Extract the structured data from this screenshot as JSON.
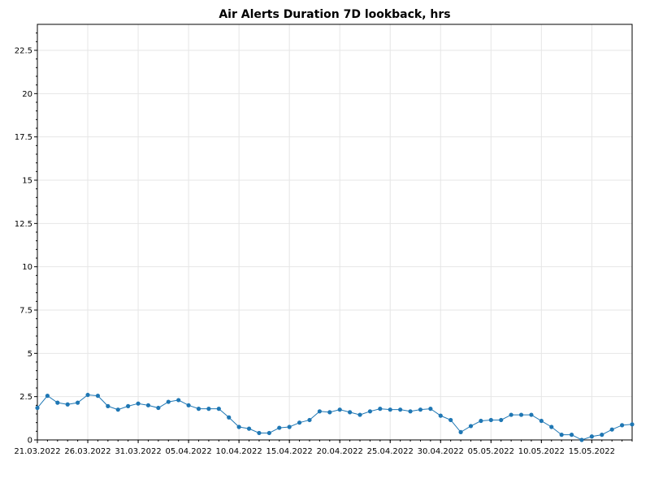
{
  "chart_data": {
    "type": "line",
    "title": "Air Alerts Duration 7D lookback, hrs",
    "xlabel": "",
    "ylabel": "",
    "x_start": "21.03.2022",
    "x_step_days": 1,
    "xlim": [
      "21.03.2022",
      "19.05.2022"
    ],
    "ylim": [
      0,
      24
    ],
    "yticks": [
      0,
      2.5,
      5,
      7.5,
      10,
      12.5,
      15,
      17.5,
      20,
      22.5
    ],
    "ytick_labels": [
      "0",
      "2.5",
      "5",
      "7.5",
      "10",
      "12.5",
      "15",
      "17.5",
      "20",
      "22.5"
    ],
    "xticks": [
      "21.03.2022",
      "26.03.2022",
      "31.03.2022",
      "05.04.2022",
      "10.04.2022",
      "15.04.2022",
      "20.04.2022",
      "25.04.2022",
      "30.04.2022",
      "05.05.2022",
      "10.05.2022",
      "15.05.2022"
    ],
    "grid": true,
    "color": "#1f77b4",
    "series": [
      {
        "x": [
          "21.03.2022",
          "22.03.2022",
          "23.03.2022",
          "24.03.2022",
          "25.03.2022",
          "26.03.2022",
          "27.03.2022",
          "28.03.2022",
          "29.03.2022",
          "30.03.2022",
          "31.03.2022",
          "01.04.2022",
          "02.04.2022",
          "03.04.2022",
          "04.04.2022",
          "05.04.2022",
          "06.04.2022",
          "07.04.2022",
          "08.04.2022",
          "09.04.2022",
          "10.04.2022",
          "11.04.2022",
          "12.04.2022",
          "13.04.2022",
          "14.04.2022",
          "15.04.2022",
          "16.04.2022",
          "17.04.2022",
          "18.04.2022",
          "19.04.2022",
          "20.04.2022",
          "21.04.2022",
          "22.04.2022",
          "23.04.2022",
          "24.04.2022",
          "25.04.2022",
          "26.04.2022",
          "27.04.2022",
          "28.04.2022",
          "29.04.2022",
          "30.04.2022",
          "01.05.2022",
          "02.05.2022",
          "03.05.2022",
          "04.05.2022",
          "05.05.2022",
          "06.05.2022",
          "07.05.2022",
          "08.05.2022",
          "09.05.2022",
          "10.05.2022",
          "11.05.2022",
          "12.05.2022",
          "13.05.2022",
          "14.05.2022",
          "15.05.2022",
          "16.05.2022",
          "17.05.2022",
          "18.05.2022",
          "19.05.2022"
        ],
        "values": [
          1.85,
          2.55,
          2.15,
          2.05,
          2.15,
          2.6,
          2.55,
          1.95,
          1.75,
          1.95,
          2.1,
          2.0,
          1.85,
          2.2,
          2.3,
          2.0,
          1.8,
          1.8,
          1.8,
          1.3,
          0.75,
          0.65,
          0.4,
          0.4,
          0.7,
          0.75,
          1.0,
          1.15,
          1.65,
          1.6,
          1.75,
          1.6,
          1.45,
          1.65,
          1.8,
          1.75,
          1.75,
          1.65,
          1.75,
          1.8,
          1.4,
          1.15,
          0.45,
          0.8,
          1.1,
          1.15,
          1.15,
          1.45,
          1.45,
          1.45,
          1.1,
          0.75,
          0.3,
          0.3,
          0.0,
          0.2,
          0.3,
          0.6,
          0.85,
          0.9
        ]
      }
    ]
  }
}
